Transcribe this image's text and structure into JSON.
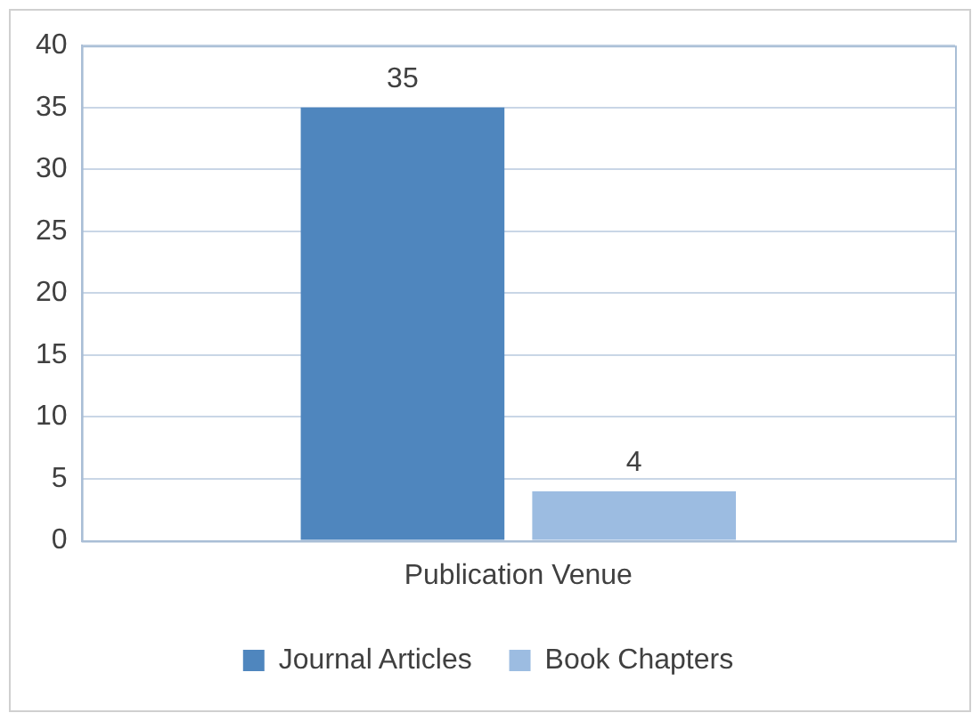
{
  "chart_data": {
    "type": "bar",
    "categories": [
      "Publication Venue"
    ],
    "series": [
      {
        "name": "Journal Articles",
        "color": "#4f86be",
        "values": [
          35
        ]
      },
      {
        "name": "Book Chapters",
        "color": "#9cbce1",
        "values": [
          4
        ]
      }
    ],
    "ylim": [
      0,
      40
    ],
    "yticks": [
      0,
      5,
      10,
      15,
      20,
      25,
      30,
      35,
      40
    ],
    "grid": "y",
    "legend": "bottom",
    "data_labels": true
  }
}
